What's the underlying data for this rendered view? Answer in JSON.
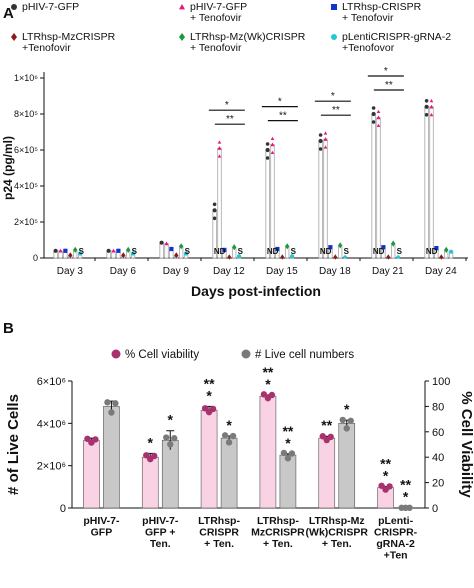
{
  "panels": {
    "a": {
      "letter": "A"
    },
    "b": {
      "letter": "B"
    }
  },
  "chart_data": [
    {
      "type": "bar",
      "panel": "A",
      "xlabel": "Days post-infection",
      "ylabel": "p24 (pg/ml)",
      "ylim": [
        0,
        1000000
      ],
      "yticks": [
        "0",
        "2×10⁵",
        "4×10⁵",
        "6×10⁵",
        "8×10⁵",
        "1×10⁶"
      ],
      "yticks_values": [
        0,
        200000,
        400000,
        600000,
        800000,
        1000000
      ],
      "categories": [
        "Day 3",
        "Day 6",
        "Day 9",
        "Day 12",
        "Day 15",
        "Day 18",
        "Day 21",
        "Day 24"
      ],
      "legend": [
        {
          "label": "pHIV-7-GFP",
          "color": "#333333",
          "marker": "circle"
        },
        {
          "label": "pHIV-7-GFP + Tenofovir",
          "color": "#e8157f",
          "marker": "triangle"
        },
        {
          "label": "LTRhsp-CRISPR + Tenofovir",
          "color": "#1133cc",
          "marker": "square"
        },
        {
          "label": "LTRhsp-MzCRISPR +Tenofovir",
          "color": "#8b1a1a",
          "marker": "diamond"
        },
        {
          "label": "LTRhsp-Mz(Wk)CRISPR + Tenofovir",
          "color": "#1a9a3a",
          "marker": "diamond"
        },
        {
          "label": "pLentiCRISPR-gRNA-2 +Tenofovor",
          "color": "#22c8d8",
          "marker": "circle"
        }
      ],
      "series": [
        {
          "name": "pHIV-7-GFP",
          "values": [
            40000,
            40000,
            85000,
            265000,
            600000,
            650000,
            800000,
            840000
          ]
        },
        {
          "name": "pHIV-7-GFP + Tenofovir",
          "values": [
            40000,
            40000,
            80000,
            610000,
            630000,
            660000,
            780000,
            840000
          ]
        },
        {
          "name": "LTRhsp-CRISPR + Tenofovir",
          "values": [
            40000,
            40000,
            50000,
            45000,
            50000,
            60000,
            60000,
            55000
          ]
        },
        {
          "name": "LTRhsp-MzCRISPR +Tenofovir",
          "values": [
            15000,
            15000,
            15000,
            0,
            0,
            0,
            0,
            0
          ]
        },
        {
          "name": "LTRhsp-Mz(Wk)CRISPR + Tenofovir",
          "values": [
            45000,
            45000,
            65000,
            60000,
            65000,
            70000,
            80000,
            45000
          ]
        },
        {
          "name": "pLentiCRISPR-gRNA-2 +Tenofovor",
          "values": [
            25000,
            25000,
            25000,
            10000,
            10000,
            0,
            0,
            35000
          ]
        }
      ],
      "bar_annotations": [
        {
          "category": "Day 3",
          "text": "S"
        },
        {
          "category": "Day 6",
          "text": "S"
        },
        {
          "category": "Day 9",
          "text": "S"
        },
        {
          "category": "Day 12",
          "text": "ND"
        },
        {
          "category": "Day 12",
          "text": "S"
        },
        {
          "category": "Day 15",
          "text": "ND"
        },
        {
          "category": "Day 15",
          "text": "S"
        },
        {
          "category": "Day 18",
          "text": "ND"
        },
        {
          "category": "Day 18",
          "text": "S"
        },
        {
          "category": "Day 21",
          "text": "ND"
        },
        {
          "category": "Day 21",
          "text": "S"
        },
        {
          "category": "Day 24",
          "text": "ND"
        }
      ],
      "significance": [
        {
          "category": "Day 12",
          "marks": [
            "*",
            "**"
          ]
        },
        {
          "category": "Day 15",
          "marks": [
            "*",
            "**"
          ]
        },
        {
          "category": "Day 18",
          "marks": [
            "*",
            "**"
          ]
        },
        {
          "category": "Day 21",
          "marks": [
            "*",
            "**"
          ]
        }
      ]
    },
    {
      "type": "bar",
      "panel": "B",
      "ylabel_left": "# of Live Cells",
      "ylabel_right": "% Cell Viability",
      "ylim_left": [
        0,
        6000000
      ],
      "ylim_right": [
        0,
        100
      ],
      "yticks_left": [
        "0",
        "2×10⁶",
        "4×10⁶",
        "6×10⁶"
      ],
      "yticks_left_values": [
        0,
        2000000,
        4000000,
        6000000
      ],
      "yticks_right": [
        "0",
        "20",
        "40",
        "60",
        "80",
        "100"
      ],
      "categories": [
        "pHIV-7-\nGFP",
        "pHIV-7-\nGFP +\nTen.",
        "LTRhsp-\nCRISPR\n+ Ten.",
        "LTRhsp-\nMzCRISPR\n+ Ten.",
        "LTRhsp-Mz\n(Wk)CRISPR\n+ Ten.",
        "pLenti-\nCRISPR-\ngRNA-2\n+Ten"
      ],
      "legend": [
        {
          "label": "% Cell viability",
          "color": "#a8326e",
          "marker": "circle"
        },
        {
          "label": "# Live cell numbers",
          "color": "#7a7a7a",
          "marker": "circle"
        }
      ],
      "series": [
        {
          "name": "% Cell viability",
          "axis": "right",
          "values": [
            53,
            40,
            77,
            88,
            55,
            16
          ],
          "error": [
            2,
            3,
            3,
            1,
            1.5,
            1
          ],
          "color": "#f9d2e4"
        },
        {
          "name": "# Live cell numbers",
          "axis": "left",
          "values": [
            4800000,
            3200000,
            3300000,
            2500000,
            4000000,
            10000
          ],
          "error": [
            250000,
            450000,
            100000,
            60000,
            150000,
            5000
          ],
          "color": "#c8c8c8"
        }
      ],
      "significance": [
        {
          "category": 1,
          "viability": "*",
          "cells": "*"
        },
        {
          "category": 2,
          "viability": "**\n*",
          "cells": "*"
        },
        {
          "category": 3,
          "viability": "**\n*",
          "cells": "**\n*"
        },
        {
          "category": 4,
          "viability": "**",
          "cells": "*"
        },
        {
          "category": 5,
          "viability": "**\n*",
          "cells": "**\n*"
        }
      ]
    }
  ]
}
